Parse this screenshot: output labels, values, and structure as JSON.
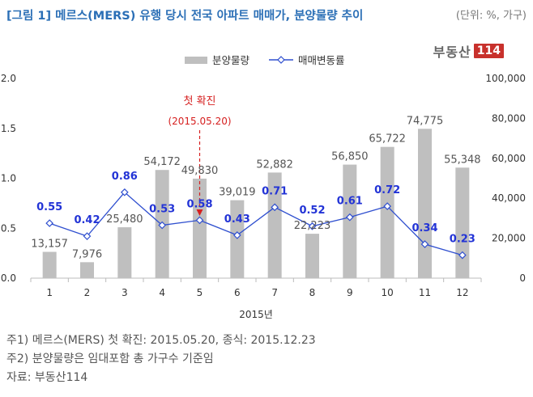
{
  "header": {
    "title": "[그림 1] 메르스(MERS) 유행 당시 전국 아파트 매매가, 분양물량 추이",
    "unit": "(단위: %, 가구)"
  },
  "brand": {
    "text": "부동산",
    "badge": "114"
  },
  "annotation": {
    "label": "첫 확진",
    "date": "(2015.05.20)"
  },
  "notes": [
    "주1) 메르스(MERS) 첫 확진: 2015.05.20, 종식: 2015.12.23",
    "주2) 분양물량은 임대포함 총 가구수 기준임",
    "자료: 부동산114"
  ],
  "chart_data": {
    "type": "bar",
    "categories": [
      "1",
      "2",
      "3",
      "4",
      "5",
      "6",
      "7",
      "8",
      "9",
      "10",
      "11",
      "12"
    ],
    "xlabel": "2015년",
    "series": [
      {
        "name": "분양물량",
        "type": "bar",
        "axis": "right",
        "values": [
          13157,
          7976,
          25480,
          54172,
          49830,
          39019,
          52882,
          22223,
          56850,
          65722,
          74775,
          55348
        ],
        "labels": [
          "13,157",
          "7,976",
          "25,480",
          "54,172",
          "49,830",
          "39,019",
          "52,882",
          "22,223",
          "56,850",
          "65,722",
          "74,775",
          "55,348"
        ],
        "color": "#bfbfbf"
      },
      {
        "name": "매매변동률",
        "type": "line",
        "axis": "left",
        "values": [
          0.55,
          0.42,
          0.86,
          0.53,
          0.58,
          0.43,
          0.71,
          0.52,
          0.61,
          0.72,
          0.34,
          0.23
        ],
        "labels": [
          "0.55",
          "0.42",
          "0.86",
          "0.53",
          "0.58",
          "0.43",
          "0.71",
          "0.52",
          "0.61",
          "0.72",
          "0.34",
          "0.23"
        ],
        "color": "#2f4fcf"
      }
    ],
    "left_axis": {
      "ylim": [
        0,
        2.0
      ],
      "ticks": [
        "0.0",
        "0.5",
        "1.0",
        "1.5",
        "2.0"
      ]
    },
    "right_axis": {
      "ylim": [
        0,
        100000
      ],
      "ticks": [
        "0",
        "20,000",
        "40,000",
        "60,000",
        "80,000",
        "100,000"
      ]
    },
    "annotation_category": "5",
    "legend_position": "top-center",
    "grid": false
  }
}
